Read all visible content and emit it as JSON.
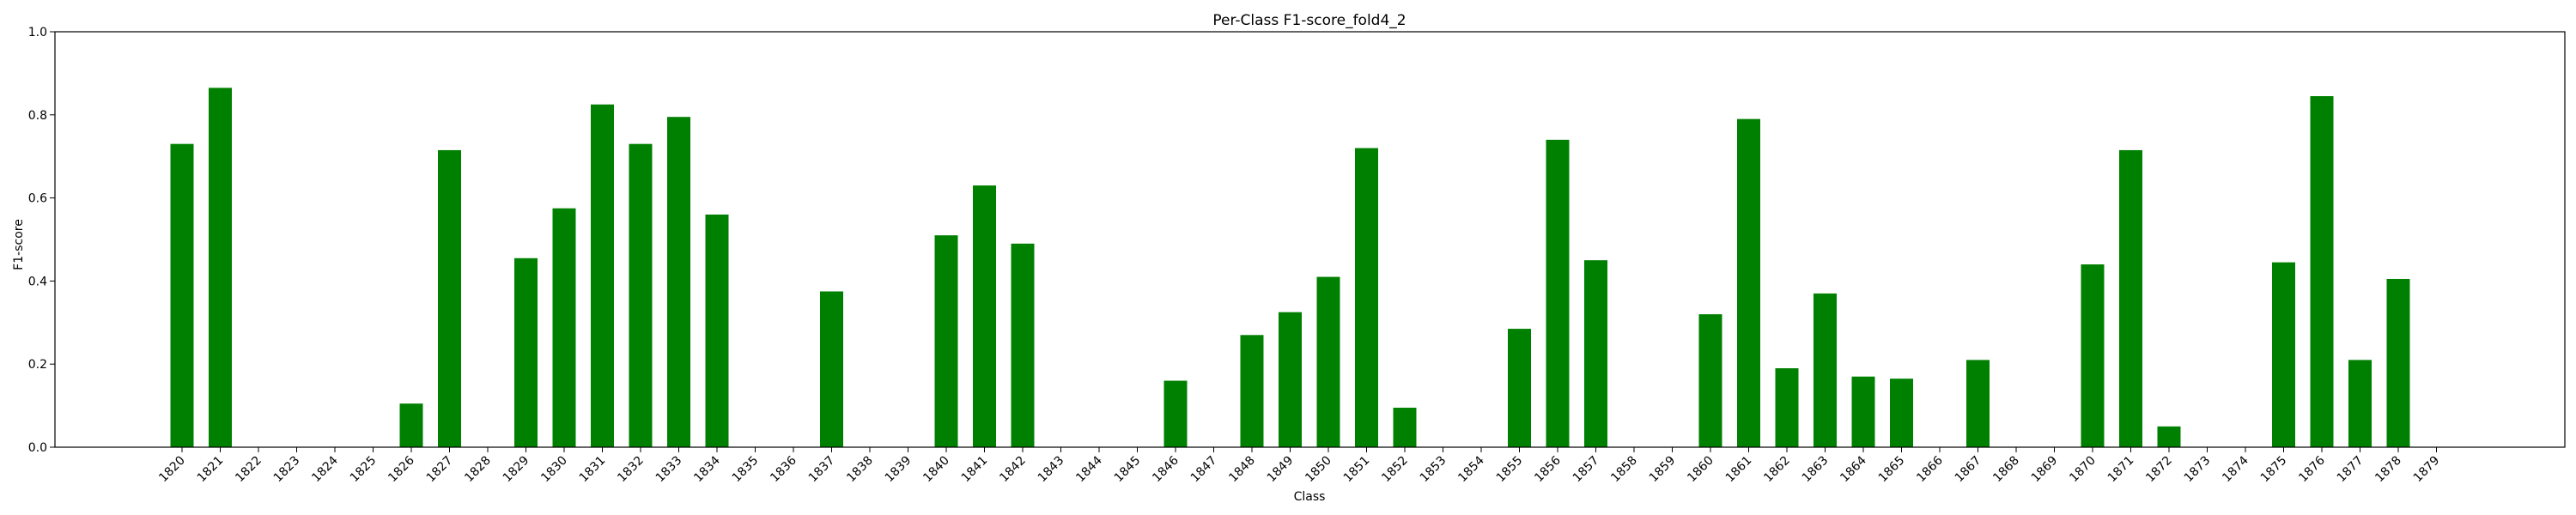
{
  "chart_data": {
    "type": "bar",
    "title": "Per-Class F1-score_fold4_2",
    "xlabel": "Class",
    "ylabel": "F1-score",
    "ylim": [
      0,
      1.0
    ],
    "yticks": [
      "0.0",
      "0.2",
      "0.4",
      "0.6",
      "0.8",
      "1.0"
    ],
    "grid": false,
    "bar_color": "#008000",
    "categories": [
      "1820",
      "1821",
      "1822",
      "1823",
      "1824",
      "1825",
      "1826",
      "1827",
      "1828",
      "1829",
      "1830",
      "1831",
      "1832",
      "1833",
      "1834",
      "1835",
      "1836",
      "1837",
      "1838",
      "1839",
      "1840",
      "1841",
      "1842",
      "1843",
      "1844",
      "1845",
      "1846",
      "1847",
      "1848",
      "1849",
      "1850",
      "1851",
      "1852",
      "1853",
      "1854",
      "1855",
      "1856",
      "1857",
      "1858",
      "1859",
      "1860",
      "1861",
      "1862",
      "1863",
      "1864",
      "1865",
      "1866",
      "1867",
      "1868",
      "1869",
      "1870",
      "1871",
      "1872",
      "1873",
      "1874",
      "1875",
      "1876",
      "1877",
      "1878",
      "1879"
    ],
    "values": [
      0.73,
      0.865,
      0,
      0,
      0,
      0,
      0.105,
      0.715,
      0,
      0.455,
      0.575,
      0.825,
      0.73,
      0.795,
      0.56,
      0,
      0,
      0.375,
      0,
      0,
      0.51,
      0.63,
      0.49,
      0,
      0,
      0,
      0.16,
      0,
      0.27,
      0.325,
      0.41,
      0.72,
      0.095,
      0,
      0,
      0.285,
      0.74,
      0.45,
      0,
      0,
      0.32,
      0.79,
      0.19,
      0.37,
      0.17,
      0.165,
      0,
      0.21,
      0,
      0,
      0.44,
      0.715,
      0.05,
      0,
      0,
      0.445,
      0.845,
      0.21,
      0.405,
      0
    ]
  }
}
